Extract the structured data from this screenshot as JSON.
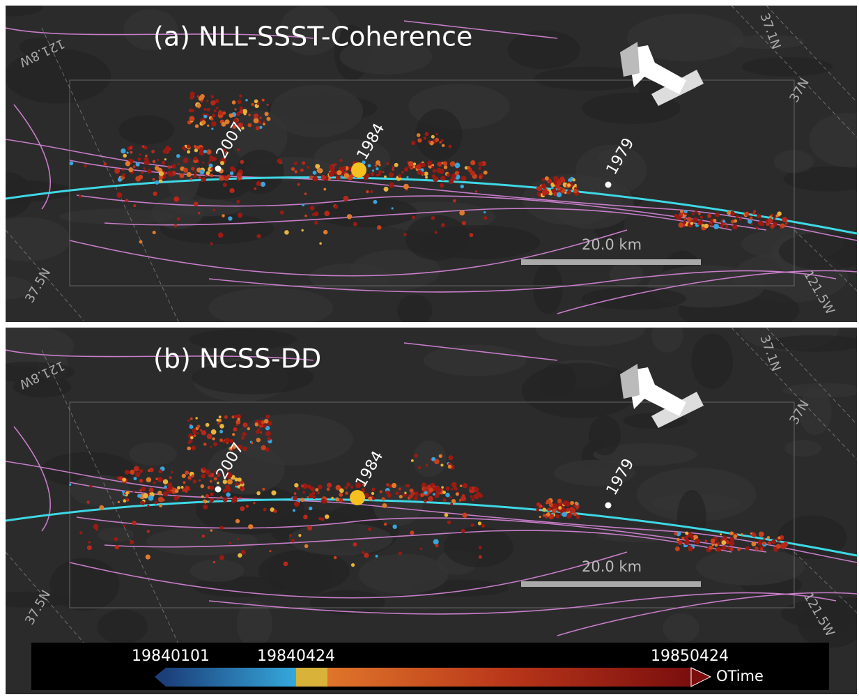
{
  "panels": [
    {
      "title": "(a) NLL-SSST-Coherence",
      "events": [
        "2007",
        "1984",
        "1979"
      ],
      "scale_label": "20.0 km",
      "coordinates": [
        "121.8W",
        "37.1N",
        "37N",
        "37.5N",
        "121.5W"
      ]
    },
    {
      "title": "(b) NCSS-DD",
      "events": [
        "2007",
        "1984",
        "1979"
      ],
      "scale_label": "20.0 km",
      "coordinates": [
        "121.8W",
        "37.1N",
        "37N",
        "37.5N",
        "121.5W"
      ]
    }
  ],
  "colorbar": {
    "tick_labels": [
      "19840101",
      "19840424",
      "19850424"
    ],
    "label": "OTime"
  }
}
